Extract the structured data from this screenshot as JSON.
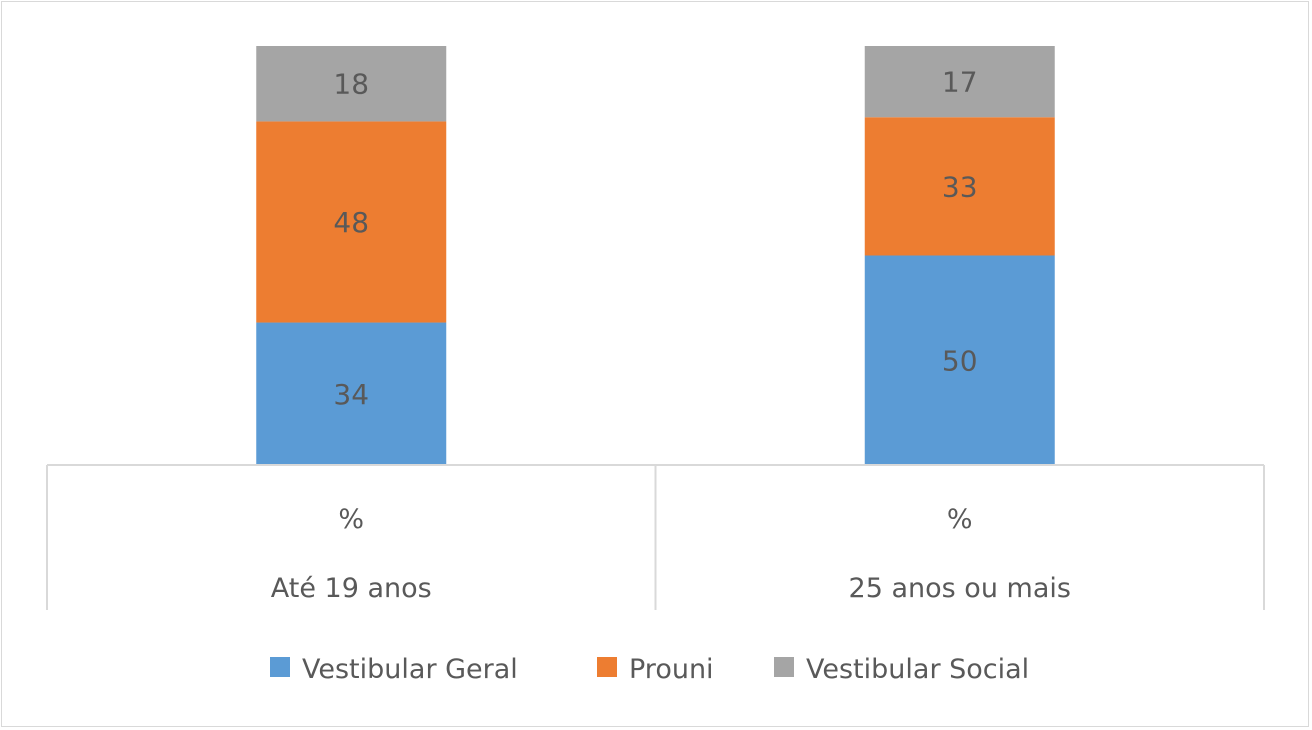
{
  "chart_data": {
    "type": "bar",
    "stacked": true,
    "title": "",
    "xlabel": "",
    "ylabel": "",
    "ylim": [
      0,
      100
    ],
    "grid": false,
    "legend_position": "bottom",
    "categories": [
      {
        "unit": "%",
        "group": "Até 19 anos"
      },
      {
        "unit": "%",
        "group": "25 anos ou mais"
      }
    ],
    "series": [
      {
        "name": "Vestibular Geral",
        "color": "#5b9bd5",
        "values": [
          34,
          50
        ]
      },
      {
        "name": "Prouni",
        "color": "#ed7d31",
        "values": [
          48,
          33
        ]
      },
      {
        "name": "Vestibular Social",
        "color": "#a5a5a5",
        "values": [
          18,
          17
        ]
      }
    ]
  }
}
